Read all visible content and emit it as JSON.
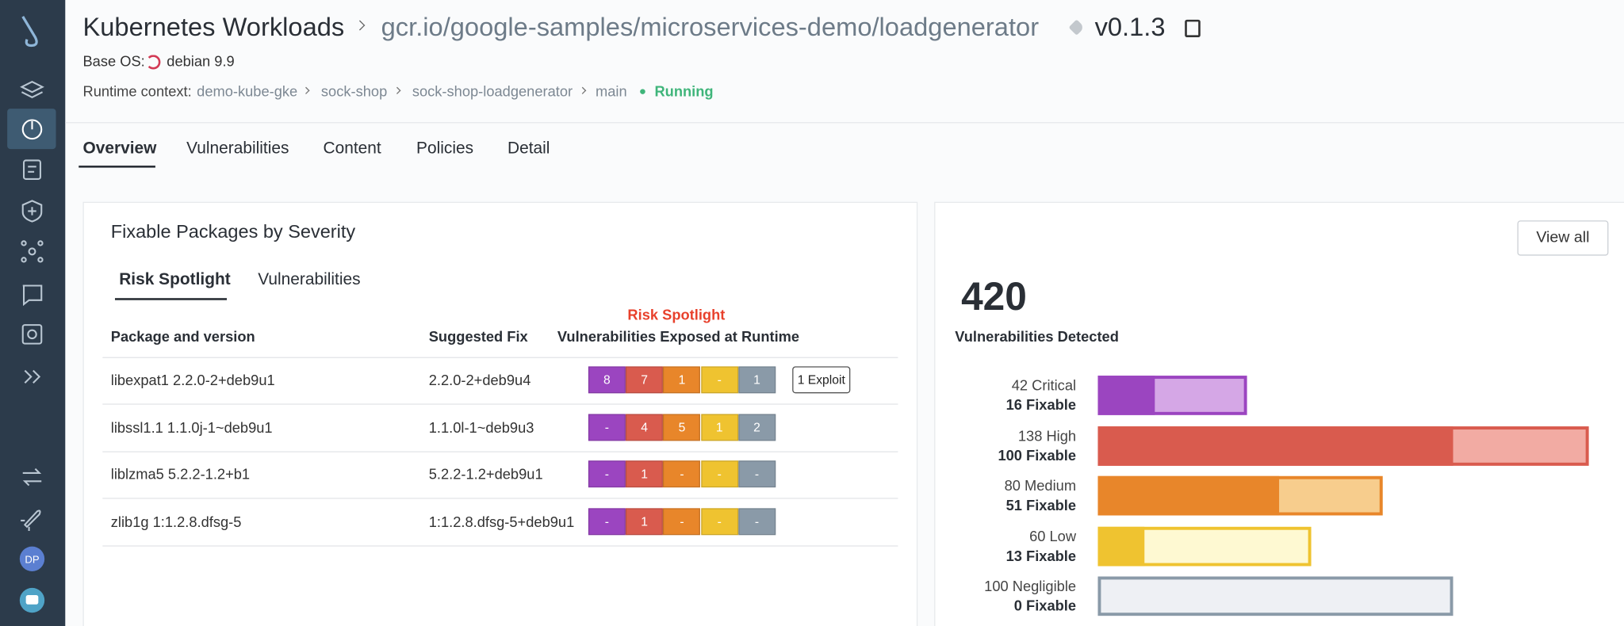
{
  "sidebar": {
    "avatar": "DP"
  },
  "header": {
    "title": "Kubernetes Workloads",
    "image": "gcr.io/google-samples/microservices-demo/loadgenerator",
    "tag": "v0.1.3",
    "base_os_label": "Base OS:",
    "base_os": "debian 9.9",
    "runtime_label": "Runtime context:",
    "runtime_path": [
      "demo-kube-gke",
      "sock-shop",
      "sock-shop-loadgenerator",
      "main"
    ],
    "status": "Running"
  },
  "tabs": [
    "Overview",
    "Vulnerabilities",
    "Content",
    "Policies",
    "Detail"
  ],
  "packages_card": {
    "title": "Fixable Packages by Severity",
    "subtabs": [
      "Risk Spotlight",
      "Vulnerabilities"
    ],
    "annotation": "Risk Spotlight",
    "columns": [
      "Package and version",
      "Suggested Fix",
      "Vulnerabilities Exposed at Runtime"
    ],
    "rows": [
      {
        "package": "libexpat1 2.2.0-2+deb9u1",
        "fix": "2.2.0-2+deb9u4",
        "counts": [
          8,
          7,
          1,
          "-",
          1
        ],
        "exploit": "1 Exploit"
      },
      {
        "package": "libssl1.1 1.1.0j-1~deb9u1",
        "fix": "1.1.0l-1~deb9u3",
        "counts": [
          "-",
          4,
          5,
          1,
          2
        ]
      },
      {
        "package": "liblzma5 5.2.2-1.2+b1",
        "fix": "5.2.2-1.2+deb9u1",
        "counts": [
          "-",
          1,
          "-",
          "-",
          "-"
        ]
      },
      {
        "package": "zlib1g 1:1.2.8.dfsg-5",
        "fix": "1:1.2.8.dfsg-5+deb9u1",
        "counts": [
          "-",
          1,
          "-",
          "-",
          "-"
        ]
      }
    ]
  },
  "summary_card": {
    "view_all": "View all",
    "total": 420,
    "total_label": "Vulnerabilities Detected",
    "severities": [
      {
        "count": 42,
        "name": "Critical",
        "fixable": 16,
        "fixable_label": "Fixable"
      },
      {
        "count": 138,
        "name": "High",
        "fixable": 100,
        "fixable_label": "Fixable"
      },
      {
        "count": 80,
        "name": "Medium",
        "fixable": 51,
        "fixable_label": "Fixable"
      },
      {
        "count": 60,
        "name": "Low",
        "fixable": 13,
        "fixable_label": "Fixable"
      },
      {
        "count": 100,
        "name": "Negligible",
        "fixable": 0,
        "fixable_label": "Fixable"
      }
    ]
  }
}
